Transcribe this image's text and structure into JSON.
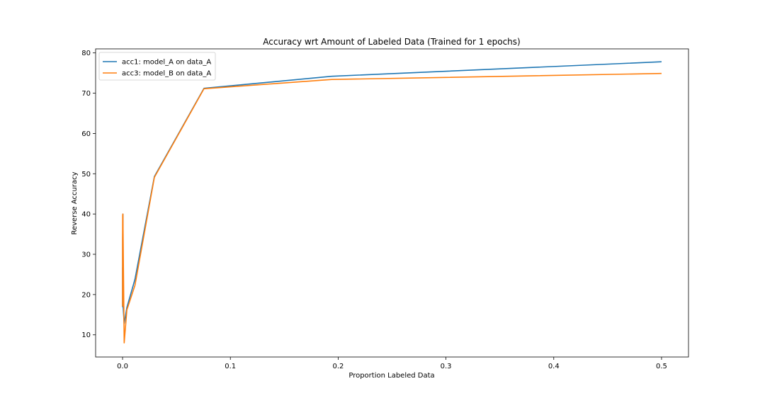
{
  "chart_data": {
    "type": "line",
    "title": "Accuracy wrt Amount of Labeled Data (Trained for 1 epochs)",
    "xlabel": "Proportion Labeled Data",
    "ylabel": "Reverse Accuracy",
    "xlim": [
      -0.025,
      0.525
    ],
    "ylim": [
      4.5,
      81.0
    ],
    "xticks": [
      0.0,
      0.1,
      0.2,
      0.3,
      0.4,
      0.5
    ],
    "xtick_labels": [
      "0.0",
      "0.1",
      "0.2",
      "0.3",
      "0.4",
      "0.5"
    ],
    "yticks": [
      10,
      20,
      30,
      40,
      50,
      60,
      70,
      80
    ],
    "ytick_labels": [
      "10",
      "20",
      "30",
      "40",
      "50",
      "60",
      "70",
      "80"
    ],
    "grid": false,
    "legend_position": "top-left",
    "series": [
      {
        "name": "acc1: model_A on data_A",
        "color": "#1f77b4",
        "points": [
          [
            0.0,
            26.8
          ],
          [
            0.0,
            17.0
          ],
          [
            0.0001,
            33.5
          ],
          [
            0.0003,
            40.0
          ],
          [
            0.0005,
            17.0
          ],
          [
            0.0015,
            12.8
          ],
          [
            0.004,
            16.8
          ],
          [
            0.0115,
            23.8
          ],
          [
            0.0295,
            49.3
          ],
          [
            0.0755,
            71.2
          ],
          [
            0.194,
            74.2
          ],
          [
            0.5,
            77.8
          ]
        ]
      },
      {
        "name": "acc3: model_B on data_A",
        "color": "#ff7f0e",
        "points": [
          [
            0.0,
            17.0
          ],
          [
            0.0,
            33.5
          ],
          [
            0.0001,
            39.7
          ],
          [
            0.0003,
            40.0
          ],
          [
            0.0008,
            26.5
          ],
          [
            0.0015,
            8.0
          ],
          [
            0.004,
            16.2
          ],
          [
            0.0115,
            22.3
          ],
          [
            0.0295,
            49.1
          ],
          [
            0.0755,
            71.1
          ],
          [
            0.194,
            73.4
          ],
          [
            0.5,
            74.9
          ]
        ]
      }
    ]
  }
}
